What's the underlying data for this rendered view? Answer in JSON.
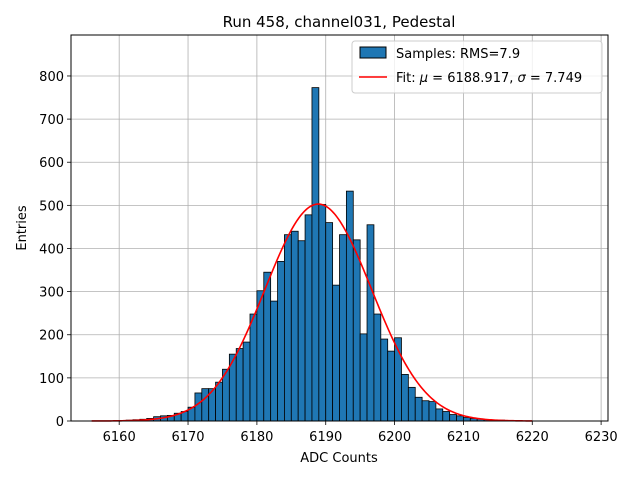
{
  "chart_data": {
    "type": "bar",
    "title": "Run 458, channel031, Pedestal",
    "xlabel": "ADC Counts",
    "ylabel": "Entries",
    "xlim": [
      6153,
      6231
    ],
    "ylim": [
      0,
      895
    ],
    "xticks": [
      6160,
      6170,
      6180,
      6190,
      6200,
      6210,
      6220,
      6230
    ],
    "yticks": [
      0,
      100,
      200,
      300,
      400,
      500,
      600,
      700,
      800
    ],
    "grid": true,
    "legend_position": "top-right",
    "histogram": {
      "name": "Samples: RMS=7.9",
      "color": "#1f77b4",
      "edgecolor": "#000000",
      "bin_width": 1,
      "bin_starts": [
        6161,
        6162,
        6163,
        6164,
        6165,
        6166,
        6167,
        6168,
        6169,
        6170,
        6171,
        6172,
        6173,
        6174,
        6175,
        6176,
        6177,
        6178,
        6179,
        6180,
        6181,
        6182,
        6183,
        6184,
        6185,
        6186,
        6187,
        6188,
        6189,
        6190,
        6191,
        6192,
        6193,
        6194,
        6195,
        6196,
        6197,
        6198,
        6199,
        6200,
        6201,
        6202,
        6203,
        6204,
        6205,
        6206,
        6207,
        6208,
        6209,
        6210,
        6211,
        6212,
        6213,
        6214,
        6215,
        6216
      ],
      "values": [
        2,
        3,
        4,
        6,
        10,
        12,
        13,
        18,
        22,
        32,
        65,
        75,
        75,
        90,
        120,
        155,
        168,
        183,
        248,
        302,
        345,
        278,
        370,
        432,
        440,
        418,
        478,
        773,
        502,
        460,
        315,
        432,
        533,
        420,
        202,
        455,
        248,
        190,
        162,
        193,
        108,
        78,
        55,
        47,
        45,
        28,
        22,
        15,
        12,
        8,
        6,
        5,
        3,
        2,
        2,
        1
      ]
    },
    "fit": {
      "name": "Fit: μ = 6188.917, σ = 7.749",
      "label_prefix": "Fit: ",
      "mu_symbol": "μ",
      "mu_value": " = 6188.917, ",
      "sigma_symbol": "σ",
      "sigma_value": " = 7.749",
      "color": "#ff0000",
      "mu": 6188.917,
      "sigma": 7.749,
      "amplitude": 503,
      "x_range": [
        6156,
        6220
      ]
    }
  }
}
